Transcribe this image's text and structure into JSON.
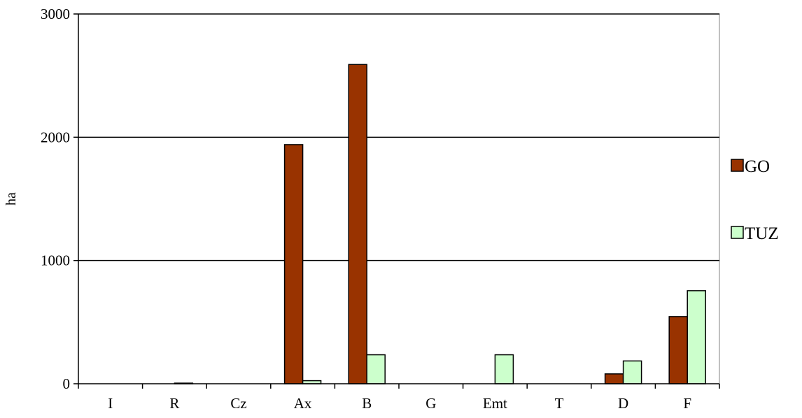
{
  "chart_data": {
    "type": "bar",
    "title": "",
    "xlabel": "",
    "ylabel": "ha",
    "ylim": [
      0,
      3000
    ],
    "yticks": [
      "0",
      "1000",
      "2000",
      "3000"
    ],
    "grid": "horizontal major gridlines",
    "legend_position": "right",
    "categories": [
      "I",
      "R",
      "Cz",
      "Ax",
      "B",
      "G",
      "Emt",
      "T",
      "D",
      "F"
    ],
    "series": [
      {
        "name": "GO",
        "color": "#993300",
        "values": [
          0,
          0,
          0,
          1940,
          2590,
          0,
          0,
          0,
          80,
          545
        ]
      },
      {
        "name": "TUZ",
        "color": "#CCFFCC",
        "values": [
          0,
          5,
          0,
          25,
          235,
          0,
          235,
          0,
          185,
          755
        ]
      }
    ]
  }
}
